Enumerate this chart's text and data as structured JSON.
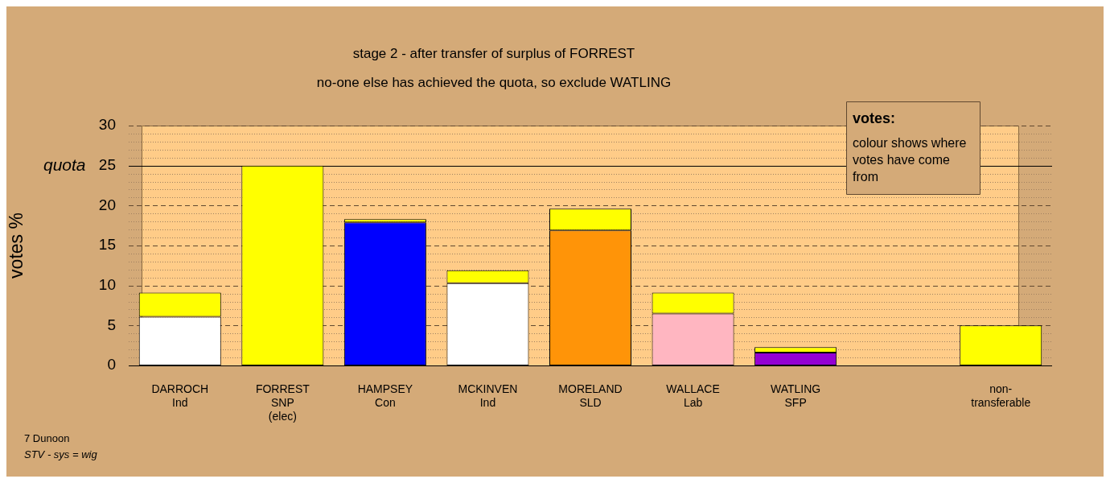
{
  "chart_data": {
    "type": "bar",
    "title": "stage 2 - after transfer of surplus of FORREST",
    "subtitle": "no-one else has achieved the quota, so exclude WATLING",
    "ylabel": "votes %",
    "categories": [
      "DARROCH\nInd",
      "FORREST\nSNP\n(elec)",
      "HAMPSEY\nCon",
      "MCKINVEN\nInd",
      "MORELAND\nSLD",
      "WALLACE\nLab",
      "WATLING\nSFP",
      null,
      "non-\ntransferable"
    ],
    "stacked": true,
    "series": [
      {
        "colors": [
          "#ffffff",
          "#ffff00",
          "#0000ff",
          "#ffffff",
          "#ff9408",
          "#ffb6c1",
          "#9400d3",
          "#ffffff",
          "#ffff00"
        ],
        "values": [
          6.1,
          null,
          17.9,
          10.3,
          16.9,
          6.5,
          1.6,
          null,
          null
        ]
      },
      {
        "color": "#ffff00",
        "values": [
          3.0,
          25,
          0.4,
          1.6,
          2.7,
          2.6,
          0.7,
          null,
          5.0
        ]
      }
    ],
    "ylim": [
      0,
      30
    ],
    "yticks": [
      0,
      {
        "value": 1,
        "label": null
      },
      {
        "value": 2,
        "label": null
      },
      {
        "value": 3,
        "label": null
      },
      {
        "value": 4,
        "label": null
      },
      5,
      {
        "value": 6,
        "label": null
      },
      {
        "value": 7,
        "label": null
      },
      {
        "value": 8,
        "label": null
      },
      {
        "value": 9,
        "label": null
      },
      10,
      {
        "value": 11,
        "label": null
      },
      {
        "value": 12,
        "label": null
      },
      {
        "value": 13,
        "label": null
      },
      {
        "value": 14,
        "label": null
      },
      15,
      {
        "value": 16,
        "label": null
      },
      {
        "value": 17,
        "label": null
      },
      {
        "value": 18,
        "label": null
      },
      {
        "value": 19,
        "label": null
      },
      20,
      {
        "value": 21,
        "label": null
      },
      {
        "value": 22,
        "label": null
      },
      {
        "value": 23,
        "label": null
      },
      {
        "value": 24,
        "label": null
      },
      25,
      {
        "value": 26,
        "label": null
      },
      {
        "value": 27,
        "label": null
      },
      {
        "value": 28,
        "label": null
      },
      {
        "value": 29,
        "label": null
      },
      30
    ],
    "grid": "y",
    "ref_lines": [
      {
        "axis": "y",
        "value": 25,
        "label": "quota",
        "color": "#000000"
      }
    ],
    "annotations": [
      "votes:",
      "colour shows where votes have come from",
      "7 Dunoon",
      "STV - sys = wig"
    ]
  }
}
